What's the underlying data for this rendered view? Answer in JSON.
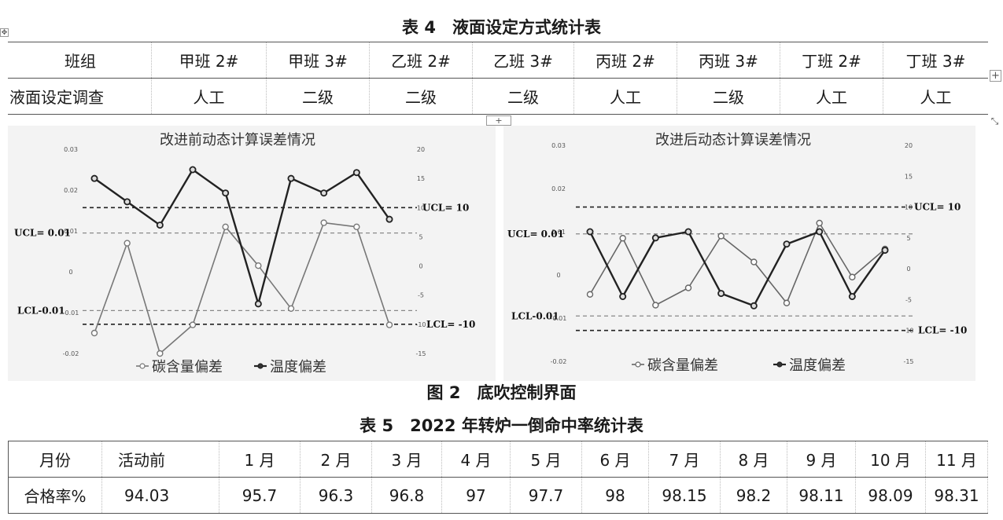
{
  "table4": {
    "caption": "表 4　液面设定方式统计表",
    "header": [
      "班组",
      "甲班 2#",
      "甲班 3#",
      "乙班 2#",
      "乙班 3#",
      "丙班 2#",
      "丙班 3#",
      "丁班 2#",
      "丁班 3#"
    ],
    "row": [
      "液面设定调查",
      "人工",
      "二级",
      "二级",
      "二级",
      "人工",
      "二级",
      "人工",
      "人工"
    ]
  },
  "figure2": {
    "caption": "图 2　底吹控制界面"
  },
  "table5": {
    "caption": "表 5　2022 年转炉一倒命中率统计表",
    "header": [
      "月份",
      "活动前",
      "1 月",
      "2 月",
      "3 月",
      "4 月",
      "5 月",
      "6 月",
      "7 月",
      "8 月",
      "9 月",
      "10 月",
      "11 月"
    ],
    "row": [
      "合格率%",
      "94.03",
      "95.7",
      "96.3",
      "96.8",
      "97",
      "97.7",
      "98",
      "98.15",
      "98.2",
      "98.11",
      "98.09",
      "98.31"
    ]
  },
  "icons": {
    "move_handle": "move-handle-icon",
    "add_column": "add-column-icon",
    "add_row": "add-row-icon",
    "resize": "resize-icon"
  },
  "chart_data": [
    {
      "type": "line",
      "title": "改进前动态计算误差情况",
      "x": [
        1,
        2,
        3,
        4,
        5,
        6,
        7,
        8,
        9,
        10
      ],
      "left_axis": {
        "ylim": [
          -0.02,
          0.03
        ],
        "ticks": [
          "0.03",
          "0.02",
          "0.01",
          "0",
          "-0.01",
          "-0.02"
        ]
      },
      "right_axis": {
        "ylim": [
          -15,
          20
        ],
        "ticks": [
          "20",
          "15",
          "10",
          "5",
          "0",
          "-5",
          "-10",
          "-15"
        ]
      },
      "series": [
        {
          "name": "碳含量偏差",
          "axis": "left",
          "color": "#777777",
          "marker": "open-circle",
          "values": [
            -0.015,
            0.007,
            -0.02,
            -0.013,
            0.011,
            0.0015,
            -0.009,
            0.012,
            0.011,
            -0.013
          ]
        },
        {
          "name": "温度偏差",
          "axis": "right",
          "color": "#222222",
          "marker": "filled-circle",
          "values": [
            15,
            11,
            7,
            16.5,
            12.5,
            -6.5,
            15,
            12.5,
            16,
            8
          ]
        }
      ],
      "control_lines": [
        {
          "label": "UCL= 0.01",
          "axis": "left",
          "value": 0.0095,
          "style": "dashed-light"
        },
        {
          "label": "LCL-0.01",
          "axis": "left",
          "value": -0.0095,
          "style": "dashed-light"
        },
        {
          "label": "UCL= 10",
          "axis": "right",
          "value": 10,
          "style": "dashed-dark"
        },
        {
          "label": "LCL= -10",
          "axis": "right",
          "value": -10,
          "style": "dashed-dark"
        }
      ],
      "grid": false,
      "legend": "bottom"
    },
    {
      "type": "line",
      "title": "改进后动态计算误差情况",
      "x": [
        1,
        2,
        3,
        4,
        5,
        6,
        7,
        8,
        9,
        10
      ],
      "left_axis": {
        "ylim": [
          -0.02,
          0.03
        ],
        "ticks": [
          "0.03",
          "0.02",
          "0.01",
          "0",
          "-0.01",
          "-0.02"
        ]
      },
      "right_axis": {
        "ylim": [
          -15,
          20
        ],
        "ticks": [
          "20",
          "15",
          "10",
          "5",
          "0",
          "-5",
          "-10",
          "-15"
        ]
      },
      "series": [
        {
          "name": "碳含量偏差",
          "axis": "left",
          "color": "#666666",
          "marker": "open-circle",
          "values": [
            -0.0045,
            0.0085,
            -0.007,
            -0.003,
            0.009,
            0.003,
            -0.0065,
            0.012,
            -0.0005,
            0.006
          ]
        },
        {
          "name": "温度偏差",
          "axis": "right",
          "color": "#222222",
          "marker": "filled-circle",
          "values": [
            6,
            -4.5,
            5,
            6,
            -4,
            -6,
            4,
            6,
            -4.5,
            3
          ]
        }
      ],
      "control_lines": [
        {
          "label": "UCL= 0.01",
          "axis": "left",
          "value": 0.0095,
          "style": "dashed-light"
        },
        {
          "label": "LCL-0.01",
          "axis": "left",
          "value": -0.0095,
          "style": "dashed-light"
        },
        {
          "label": "UCL= 10",
          "axis": "right",
          "value": 10,
          "style": "dashed-dark"
        },
        {
          "label": "LCL= -10",
          "axis": "right",
          "value": -10,
          "style": "dashed-dark"
        }
      ],
      "grid": false,
      "legend": "bottom"
    }
  ]
}
